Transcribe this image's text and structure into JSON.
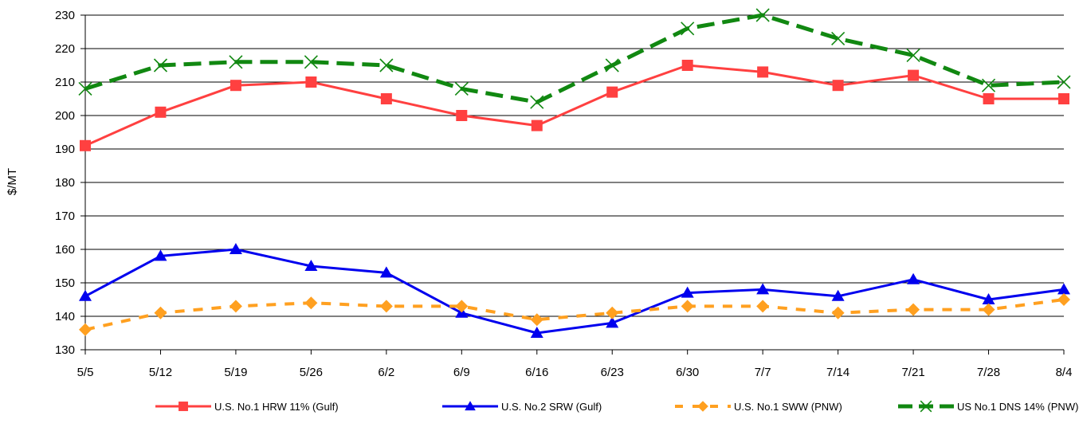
{
  "chart_data": {
    "type": "line",
    "title": "",
    "xlabel": "",
    "ylabel": "$/MT",
    "ylim": [
      130,
      230
    ],
    "ytick_step": 10,
    "grid": "horizontal",
    "legend_position": "bottom",
    "categories": [
      "5/5",
      "5/12",
      "5/19",
      "5/26",
      "6/2",
      "6/9",
      "6/16",
      "6/23",
      "6/30",
      "7/7",
      "7/14",
      "7/21",
      "7/28",
      "8/4"
    ],
    "series": [
      {
        "name": "U.S. No.1 HRW 11% (Gulf)",
        "color": "#ff4040",
        "marker": "square",
        "dash": "solid",
        "values": [
          191,
          201,
          209,
          210,
          205,
          200,
          197,
          207,
          215,
          213,
          209,
          212,
          205,
          205
        ]
      },
      {
        "name": "U.S. No.2 SRW (Gulf)",
        "color": "#0000ee",
        "marker": "triangle",
        "dash": "solid",
        "values": [
          146,
          158,
          160,
          155,
          153,
          141,
          135,
          138,
          147,
          148,
          146,
          151,
          145,
          148
        ]
      },
      {
        "name": "U.S. No.1 SWW (PNW)",
        "color": "#ffa020",
        "marker": "diamond",
        "dash": "dash",
        "values": [
          136,
          141,
          143,
          144,
          143,
          143,
          139,
          141,
          143,
          143,
          141,
          142,
          142,
          145
        ]
      },
      {
        "name": "US No.1 DNS 14% (PNW)",
        "color": "#118811",
        "marker": "x",
        "dash": "longdash",
        "values": [
          208,
          215,
          216,
          216,
          215,
          208,
          204,
          215,
          226,
          230,
          223,
          218,
          209,
          210
        ]
      }
    ]
  }
}
